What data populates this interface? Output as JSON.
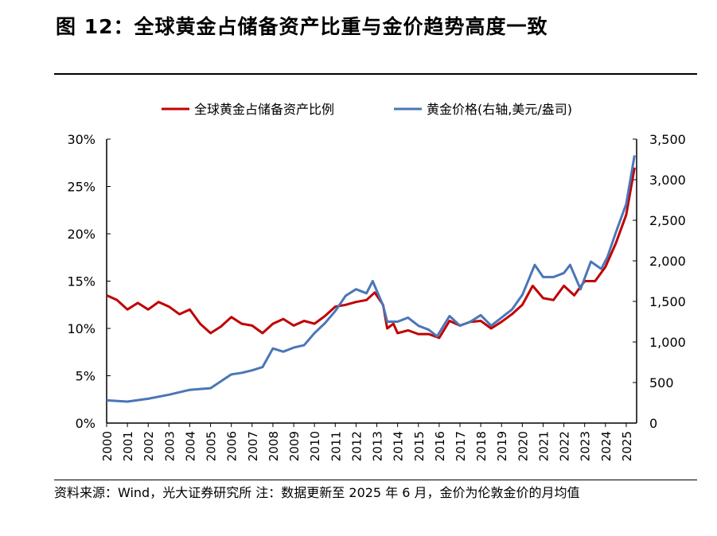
{
  "title": "图 12：全球黄金占储备资产比重与金价趋势高度一致",
  "footnote": "资料来源：Wind，光大证券研究所 注：数据更新至 2025 年 6 月，金价为伦敦金价的月均值",
  "chart_data": {
    "type": "line",
    "title": "全球黄金占储备资产比重与金价趋势高度一致",
    "legend_position": "top-center",
    "x_ticks": [
      "2000",
      "2001",
      "2002",
      "2003",
      "2004",
      "2005",
      "2006",
      "2007",
      "2008",
      "2009",
      "2010",
      "2011",
      "2012",
      "2013",
      "2014",
      "2015",
      "2016",
      "2017",
      "2018",
      "2019",
      "2020",
      "2021",
      "2022",
      "2023",
      "2024",
      "2025"
    ],
    "xlim": [
      2000,
      2025.5
    ],
    "y_left": {
      "ticks": [
        "0%",
        "5%",
        "10%",
        "15%",
        "20%",
        "25%",
        "30%"
      ],
      "lim": [
        0,
        30
      ]
    },
    "y_right": {
      "ticks": [
        "0",
        "500",
        "1,000",
        "1,500",
        "2,000",
        "2,500",
        "3,000",
        "3,500"
      ],
      "lim": [
        0,
        3500
      ]
    },
    "series": [
      {
        "name": "全球黄金占储备资产比例",
        "axis": "left",
        "color": "#C00000",
        "x": [
          2000,
          2000.5,
          2001,
          2001.5,
          2002,
          2002.5,
          2003,
          2003.5,
          2004,
          2004.5,
          2005,
          2005.5,
          2006,
          2006.5,
          2007,
          2007.5,
          2008,
          2008.5,
          2009,
          2009.5,
          2010,
          2010.5,
          2011,
          2011.5,
          2012,
          2012.5,
          2012.9,
          2013.3,
          2013.5,
          2013.8,
          2014,
          2014.5,
          2015,
          2015.5,
          2016,
          2016.5,
          2017,
          2017.5,
          2018,
          2018.5,
          2019,
          2019.5,
          2020,
          2020.5,
          2021,
          2021.5,
          2022,
          2022.5,
          2023,
          2023.5,
          2024,
          2024.5,
          2025,
          2025.4
        ],
        "values": [
          13.5,
          13.0,
          12.0,
          12.7,
          12.0,
          12.8,
          12.3,
          11.5,
          12.0,
          10.5,
          9.5,
          10.2,
          11.2,
          10.5,
          10.3,
          9.5,
          10.5,
          11.0,
          10.3,
          10.8,
          10.5,
          11.3,
          12.3,
          12.5,
          12.8,
          13.0,
          13.8,
          12.5,
          10.0,
          10.5,
          9.5,
          9.8,
          9.4,
          9.4,
          9.0,
          10.8,
          10.3,
          10.7,
          10.8,
          10.0,
          10.7,
          11.5,
          12.5,
          14.5,
          13.2,
          13.0,
          14.5,
          13.5,
          15.0,
          15.0,
          16.5,
          19.0,
          22.0,
          27.0
        ]
      },
      {
        "name": "黄金价格(右轴,美元/盎司)",
        "axis": "right",
        "color": "#4A76B8",
        "x": [
          2000,
          2001,
          2002,
          2003,
          2004,
          2005,
          2006,
          2006.5,
          2007,
          2007.5,
          2008,
          2008.5,
          2009,
          2009.5,
          2010,
          2010.5,
          2011,
          2011.5,
          2012,
          2012.5,
          2012.8,
          2013.3,
          2013.5,
          2014,
          2014.5,
          2015,
          2015.5,
          2015.9,
          2016.5,
          2017,
          2017.5,
          2018,
          2018.5,
          2019,
          2019.5,
          2020,
          2020.6,
          2021,
          2021.5,
          2022,
          2022.3,
          2022.8,
          2023.3,
          2023.8,
          2024.1,
          2024.5,
          2025,
          2025.4
        ],
        "values": [
          280,
          265,
          300,
          350,
          410,
          430,
          600,
          620,
          650,
          690,
          920,
          880,
          930,
          960,
          1110,
          1230,
          1380,
          1570,
          1650,
          1600,
          1750,
          1450,
          1250,
          1250,
          1300,
          1200,
          1150,
          1070,
          1320,
          1200,
          1250,
          1330,
          1200,
          1300,
          1400,
          1580,
          1950,
          1800,
          1800,
          1850,
          1950,
          1650,
          1990,
          1900,
          2050,
          2350,
          2700,
          3300
        ]
      }
    ]
  }
}
